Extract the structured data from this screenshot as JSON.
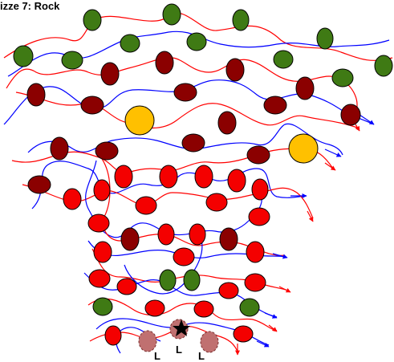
{
  "title": "izze 7: Rock",
  "labels": [
    "L",
    "L",
    "L"
  ],
  "colors": {
    "bead_green": "#3f7a14",
    "bead_darkred": "#8b0000",
    "bead_red": "#f40000",
    "bead_gold": "#ffc000",
    "bead_faded": "#c07070",
    "thread_red": "#ff0000",
    "thread_blue": "#0000ff",
    "outline": "#000000"
  },
  "icons": {
    "marker": "star-icon"
  }
}
